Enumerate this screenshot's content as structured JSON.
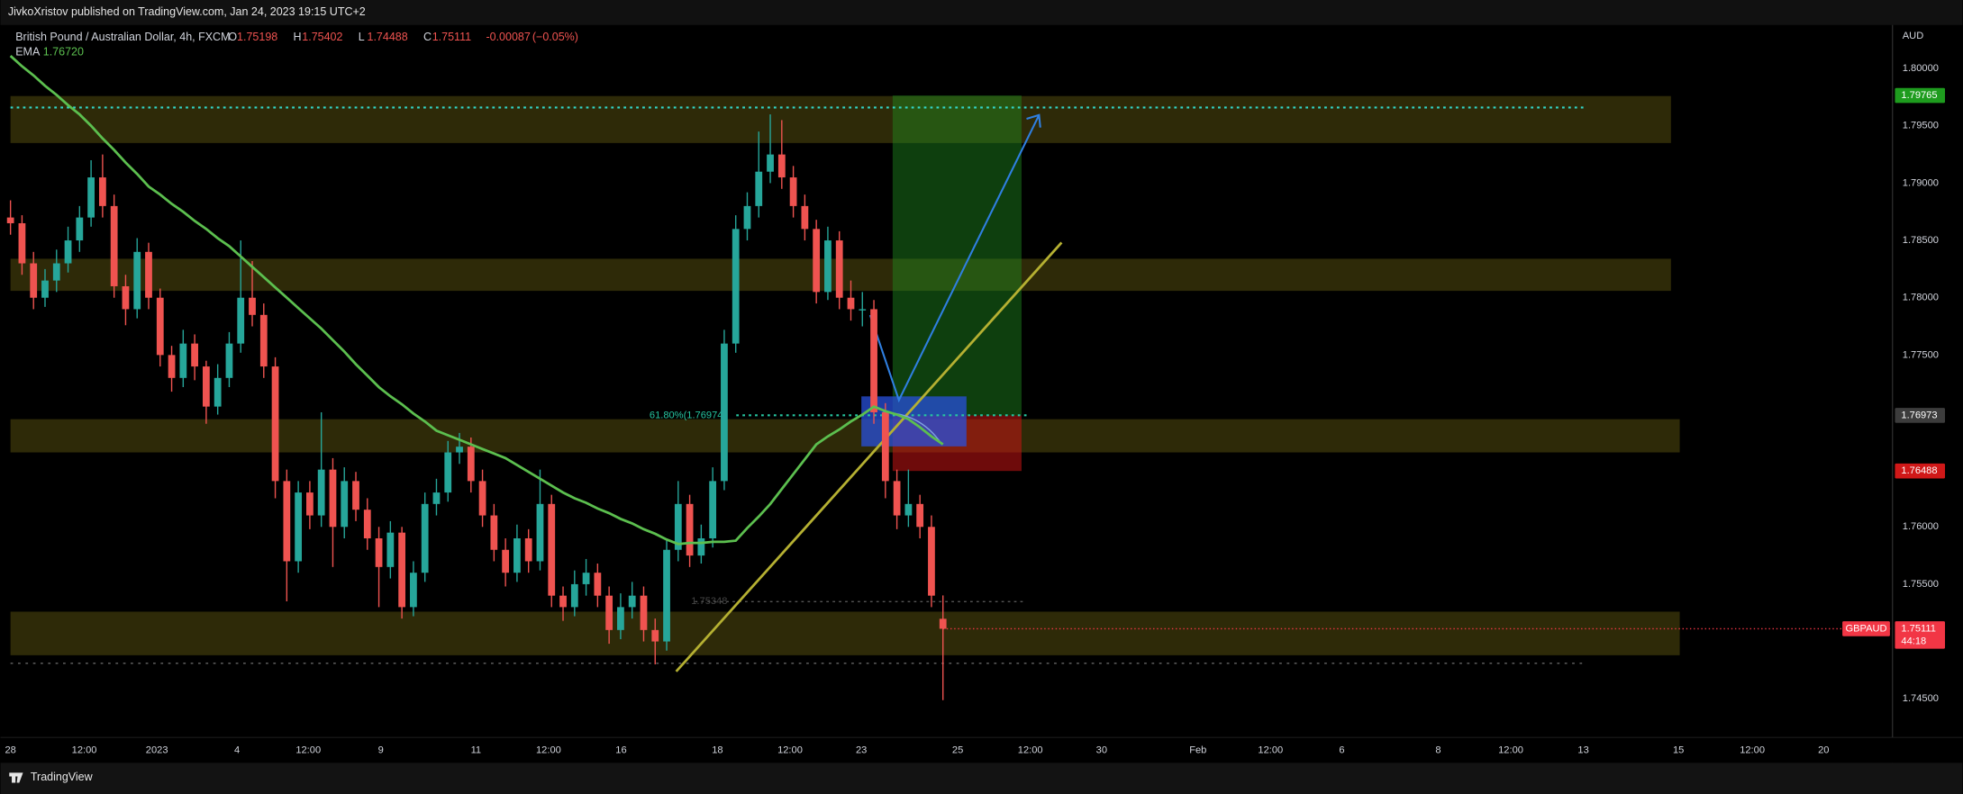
{
  "header": {
    "publisher": "JivkoXristov published on TradingView.com, Jan 24, 2023 19:15 UTC+2"
  },
  "footer": {
    "brand": "TradingView"
  },
  "chart_data": {
    "type": "candlestick",
    "title": "British Pound / Australian Dollar, 4h, FXCM",
    "ohlc_legend": [
      {
        "label": "O",
        "value": 1.75198
      },
      {
        "label": "H",
        "value": 1.75402
      },
      {
        "label": "L",
        "value": 1.74488
      },
      {
        "label": "C",
        "value": 1.75111
      }
    ],
    "change": -0.00087,
    "change_pct": "(−0.05%)",
    "colors": {
      "up": "#26a69a",
      "down": "#ef5350"
    },
    "candles": [
      [
        1.787,
        1.7885,
        1.7855,
        1.7865
      ],
      [
        1.7865,
        1.7872,
        1.782,
        1.783
      ],
      [
        1.783,
        1.784,
        1.779,
        1.78
      ],
      [
        1.78,
        1.7825,
        1.7792,
        1.7815
      ],
      [
        1.7815,
        1.7842,
        1.7805,
        1.783
      ],
      [
        1.783,
        1.7862,
        1.7822,
        1.785
      ],
      [
        1.785,
        1.788,
        1.784,
        1.787
      ],
      [
        1.787,
        1.792,
        1.7862,
        1.7905
      ],
      [
        1.7905,
        1.7925,
        1.787,
        1.788
      ],
      [
        1.788,
        1.789,
        1.78,
        1.781
      ],
      [
        1.781,
        1.782,
        1.7776,
        1.779
      ],
      [
        1.779,
        1.7852,
        1.7782,
        1.784
      ],
      [
        1.784,
        1.7848,
        1.779,
        1.78
      ],
      [
        1.78,
        1.7808,
        1.774,
        1.775
      ],
      [
        1.775,
        1.7758,
        1.7718,
        1.773
      ],
      [
        1.773,
        1.7772,
        1.7722,
        1.776
      ],
      [
        1.776,
        1.7768,
        1.7728,
        1.774
      ],
      [
        1.774,
        1.7745,
        1.769,
        1.7705
      ],
      [
        1.7705,
        1.7742,
        1.7698,
        1.773
      ],
      [
        1.773,
        1.777,
        1.7722,
        1.776
      ],
      [
        1.776,
        1.785,
        1.7752,
        1.78
      ],
      [
        1.78,
        1.7832,
        1.7775,
        1.7785
      ],
      [
        1.7785,
        1.7795,
        1.773,
        1.774
      ],
      [
        1.774,
        1.7748,
        1.7625,
        1.764
      ],
      [
        1.764,
        1.765,
        1.7535,
        1.757
      ],
      [
        1.757,
        1.764,
        1.756,
        1.763
      ],
      [
        1.763,
        1.764,
        1.7598,
        1.761
      ],
      [
        1.761,
        1.77,
        1.76,
        1.765
      ],
      [
        1.765,
        1.766,
        1.7565,
        1.76
      ],
      [
        1.76,
        1.7652,
        1.759,
        1.764
      ],
      [
        1.764,
        1.7648,
        1.7605,
        1.7615
      ],
      [
        1.7615,
        1.7625,
        1.758,
        1.759
      ],
      [
        1.759,
        1.76,
        1.753,
        1.7565
      ],
      [
        1.7565,
        1.7605,
        1.7555,
        1.7595
      ],
      [
        1.7595,
        1.76,
        1.752,
        1.753
      ],
      [
        1.753,
        1.757,
        1.7522,
        1.756
      ],
      [
        1.756,
        1.763,
        1.7552,
        1.762
      ],
      [
        1.762,
        1.7642,
        1.761,
        1.763
      ],
      [
        1.763,
        1.7675,
        1.7622,
        1.7665
      ],
      [
        1.7665,
        1.7682,
        1.7655,
        1.767
      ],
      [
        1.767,
        1.7678,
        1.763,
        1.764
      ],
      [
        1.764,
        1.765,
        1.76,
        1.761
      ],
      [
        1.761,
        1.762,
        1.757,
        1.758
      ],
      [
        1.758,
        1.759,
        1.7548,
        1.756
      ],
      [
        1.756,
        1.7602,
        1.7552,
        1.759
      ],
      [
        1.759,
        1.7598,
        1.756,
        1.757
      ],
      [
        1.757,
        1.765,
        1.7562,
        1.762
      ],
      [
        1.762,
        1.7628,
        1.753,
        1.754
      ],
      [
        1.754,
        1.7548,
        1.7518,
        1.753
      ],
      [
        1.753,
        1.7562,
        1.7522,
        1.755
      ],
      [
        1.755,
        1.7572,
        1.754,
        1.756
      ],
      [
        1.756,
        1.7568,
        1.753,
        1.754
      ],
      [
        1.754,
        1.7548,
        1.7498,
        1.751
      ],
      [
        1.751,
        1.7542,
        1.7502,
        1.753
      ],
      [
        1.753,
        1.7552,
        1.752,
        1.754
      ],
      [
        1.754,
        1.7548,
        1.75,
        1.751
      ],
      [
        1.751,
        1.752,
        1.748,
        1.75
      ],
      [
        1.75,
        1.759,
        1.7492,
        1.758
      ],
      [
        1.758,
        1.764,
        1.757,
        1.762
      ],
      [
        1.762,
        1.7628,
        1.7565,
        1.7575
      ],
      [
        1.7575,
        1.7602,
        1.7568,
        1.759
      ],
      [
        1.759,
        1.7652,
        1.7582,
        1.764
      ],
      [
        1.764,
        1.7772,
        1.7632,
        1.776
      ],
      [
        1.776,
        1.7872,
        1.7752,
        1.786
      ],
      [
        1.786,
        1.7892,
        1.785,
        1.788
      ],
      [
        1.788,
        1.7945,
        1.787,
        1.791
      ],
      [
        1.791,
        1.796,
        1.79,
        1.7925
      ],
      [
        1.7925,
        1.7955,
        1.7895,
        1.7905
      ],
      [
        1.7905,
        1.7915,
        1.787,
        1.788
      ],
      [
        1.788,
        1.789,
        1.785,
        1.786
      ],
      [
        1.786,
        1.7868,
        1.7795,
        1.7805
      ],
      [
        1.7805,
        1.7862,
        1.7798,
        1.785
      ],
      [
        1.785,
        1.7858,
        1.779,
        1.78
      ],
      [
        1.78,
        1.7815,
        1.778,
        1.779
      ],
      [
        1.779,
        1.7805,
        1.7775,
        1.779
      ],
      [
        1.779,
        1.7798,
        1.769,
        1.77
      ],
      [
        1.77,
        1.7708,
        1.7625,
        1.764
      ],
      [
        1.764,
        1.765,
        1.7598,
        1.761
      ],
      [
        1.761,
        1.765,
        1.76,
        1.762
      ],
      [
        1.762,
        1.7628,
        1.759,
        1.76
      ],
      [
        1.76,
        1.761,
        1.753,
        1.754
      ],
      [
        1.75198,
        1.75402,
        1.74488,
        1.75111
      ]
    ],
    "ema": {
      "name": "EMA",
      "value": 1.7672,
      "value_label": "1.76720",
      "color": "#5cbf4f",
      "values": [
        1.8011,
        1.8002,
        1.7994,
        1.7985,
        1.7977,
        1.7968,
        1.796,
        1.795,
        1.7939,
        1.7929,
        1.7918,
        1.7908,
        1.7897,
        1.789,
        1.7882,
        1.7875,
        1.7867,
        1.786,
        1.7852,
        1.7845,
        1.7836,
        1.7827,
        1.7818,
        1.7809,
        1.78,
        1.7791,
        1.7782,
        1.7773,
        1.7763,
        1.7753,
        1.7742,
        1.7732,
        1.7722,
        1.7714,
        1.7707,
        1.7699,
        1.7692,
        1.7684,
        1.768,
        1.7676,
        1.7672,
        1.7668,
        1.7664,
        1.766,
        1.7654,
        1.7648,
        1.7642,
        1.7636,
        1.763,
        1.7625,
        1.7621,
        1.7616,
        1.7612,
        1.7607,
        1.7603,
        1.7598,
        1.7594,
        1.7589,
        1.7585,
        1.7586,
        1.7586,
        1.7587,
        1.7587,
        1.7588,
        1.7599,
        1.7609,
        1.762,
        1.7633,
        1.7646,
        1.7659,
        1.7672,
        1.7679,
        1.7685,
        1.7692,
        1.7698,
        1.7705,
        1.7701,
        1.7698,
        1.7694,
        1.7687,
        1.7679,
        1.7672
      ]
    },
    "y_axis_unit": "AUD",
    "ylim": [
      1.7416,
      1.8038
    ],
    "yticks": [
      {
        "value": 1.8,
        "label": "1.80000"
      },
      {
        "value": 1.795,
        "label": "1.79500"
      },
      {
        "value": 1.79,
        "label": "1.79000"
      },
      {
        "value": 1.785,
        "label": "1.78500"
      },
      {
        "value": 1.78,
        "label": "1.78000"
      },
      {
        "value": 1.775,
        "label": "1.77500"
      },
      {
        "value": 1.77,
        "label": "1.77000"
      },
      {
        "value": 1.765,
        "label": "1.76500"
      },
      {
        "value": 1.76,
        "label": "1.76000"
      },
      {
        "value": 1.755,
        "label": "1.75500"
      },
      {
        "value": 1.75,
        "label": "1.75000"
      },
      {
        "value": 1.745,
        "label": "1.74500"
      }
    ],
    "x_labels": [
      "28",
      "12:00",
      "2023",
      "4",
      "12:00",
      "9",
      "11",
      "12:00",
      "16",
      "18",
      "12:00",
      "23",
      "25",
      "12:00",
      "30",
      "Feb",
      "12:00",
      "6",
      "8",
      "12:00",
      "13",
      "15",
      "12:00",
      "20"
    ],
    "grid": false,
    "zones": [
      [
        1.7935,
        1.7976
      ],
      [
        1.7806,
        1.7834
      ],
      [
        1.7665,
        1.7694
      ],
      [
        1.7488,
        1.7526
      ]
    ],
    "zone_color": "rgba(110,100,20,0.42)",
    "position": {
      "entry": 1.76973,
      "target": 1.79765,
      "stop": 1.76488
    },
    "fib": {
      "label": "61.80%(1.76974)",
      "level": 1.76974,
      "color": "#26c6a0"
    },
    "levels": [
      {
        "value": 1.7966,
        "color": "#33d6c8"
      },
      {
        "value": 1.75348,
        "label": "1.75348",
        "color": "#555"
      },
      {
        "value": 1.7481,
        "color": "#666"
      }
    ],
    "last_price": {
      "symbol": "GBPAUD",
      "value": 1.75111,
      "countdown": "44:18",
      "color": "#f23645"
    }
  }
}
